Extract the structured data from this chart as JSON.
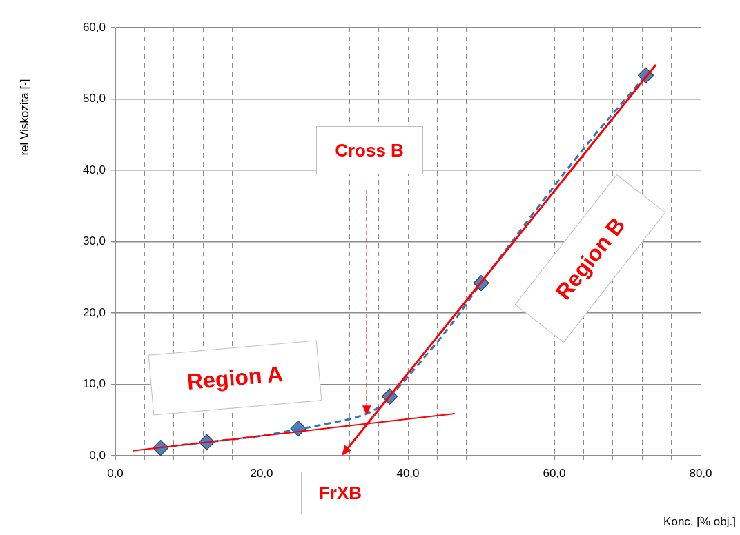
{
  "chart_data": {
    "type": "scatter",
    "xlabel": "Konc. [% obj.]",
    "ylabel": "rel Viskozita [-]",
    "xlim": [
      0,
      80
    ],
    "ylim": [
      0,
      60
    ],
    "xticks": [
      {
        "value": 0,
        "label": "0,0"
      },
      {
        "value": 4,
        "label": null
      },
      {
        "value": 8,
        "label": null
      },
      {
        "value": 12,
        "label": null
      },
      {
        "value": 16,
        "label": null
      },
      {
        "value": 20,
        "label": "20,0"
      },
      {
        "value": 24,
        "label": null
      },
      {
        "value": 28,
        "label": null
      },
      {
        "value": 32,
        "label": null
      },
      {
        "value": 36,
        "label": null
      },
      {
        "value": 40,
        "label": "40,0"
      },
      {
        "value": 44,
        "label": null
      },
      {
        "value": 48,
        "label": null
      },
      {
        "value": 52,
        "label": null
      },
      {
        "value": 56,
        "label": null
      },
      {
        "value": 60,
        "label": "60,0"
      },
      {
        "value": 64,
        "label": null
      },
      {
        "value": 68,
        "label": null
      },
      {
        "value": 72,
        "label": null
      },
      {
        "value": 76,
        "label": null
      },
      {
        "value": 80,
        "label": "80,0"
      }
    ],
    "yticks": [
      {
        "value": 0,
        "label": "0,0"
      },
      {
        "value": 10,
        "label": "10,0"
      },
      {
        "value": 20,
        "label": "20,0"
      },
      {
        "value": 30,
        "label": "30,0"
      },
      {
        "value": 40,
        "label": "40,0"
      },
      {
        "value": 50,
        "label": "50,0"
      },
      {
        "value": 60,
        "label": "60,0"
      }
    ],
    "grid": true,
    "legend": false,
    "series": [
      {
        "type": "line",
        "color": "#2e75c6",
        "line_style": "dashed",
        "marker": "none",
        "x": [
          6.2,
          12.5,
          20,
          25,
          30,
          33,
          36,
          38,
          42,
          46,
          50,
          65,
          70,
          72.5
        ],
        "values": [
          1.2,
          1.9,
          2.8,
          3.7,
          4.7,
          5.4,
          6.8,
          8.8,
          13.5,
          18.5,
          24.2,
          44.3,
          50.3,
          53.3
        ]
      },
      {
        "color": "#4f81bd",
        "marker": "diamond",
        "x": [
          6.2,
          12.5,
          25,
          37.5,
          50,
          72.5
        ],
        "values": [
          1.1,
          1.9,
          3.8,
          8.3,
          24.2,
          53.3
        ]
      },
      {
        "type": "line",
        "color": "#ff0000",
        "line_style": "solid",
        "marker": "none",
        "x": [
          2.4,
          46.4
        ],
        "values": [
          0.7,
          5.9
        ]
      }
    ],
    "annotations": [
      "Cross B",
      "Region A",
      "Region B",
      "FrXB"
    ]
  }
}
